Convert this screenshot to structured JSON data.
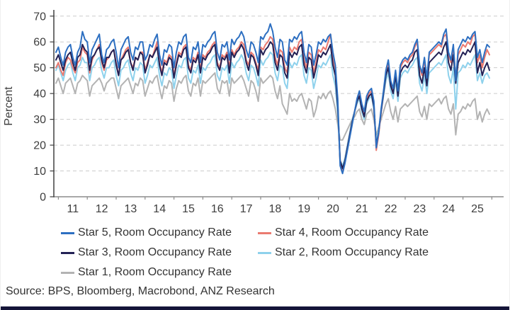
{
  "chart_data": {
    "type": "line",
    "title": "",
    "xlabel": "",
    "ylabel": "Percent",
    "ylim": [
      0,
      70
    ],
    "y_ticks": [
      0,
      10,
      20,
      30,
      40,
      50,
      60,
      70
    ],
    "x_tick_labels": [
      "11",
      "12",
      "13",
      "14",
      "15",
      "16",
      "17",
      "18",
      "19",
      "20",
      "21",
      "22",
      "23",
      "24",
      "25"
    ],
    "frequency": "monthly",
    "x_range": "Jun 2010 - Jun 2025",
    "grid": "horizontal dashed",
    "legend_position": "bottom",
    "series": [
      {
        "name": "Star 5, Room Occupancy Rate",
        "color": "#2d6fc1",
        "values": [
          56,
          58,
          54,
          51,
          56,
          58,
          59,
          54,
          51,
          56,
          58,
          64,
          61,
          60,
          52,
          57,
          59,
          61,
          63,
          55,
          52,
          57,
          58,
          60,
          61,
          56,
          50,
          57,
          59,
          61,
          62,
          56,
          53,
          58,
          57,
          60,
          60,
          53,
          55,
          59,
          58,
          61,
          63,
          55,
          51,
          57,
          56,
          59,
          58,
          50,
          56,
          60,
          59,
          62,
          63,
          54,
          52,
          58,
          57,
          60,
          52,
          59,
          58,
          60,
          61,
          63,
          64,
          56,
          53,
          59,
          58,
          60,
          53,
          61,
          59,
          61,
          62,
          64,
          62,
          57,
          54,
          60,
          59,
          56,
          52,
          62,
          61,
          63,
          64,
          67,
          64,
          58,
          54,
          61,
          60,
          53,
          51,
          61,
          60,
          62,
          61,
          63,
          64,
          56,
          52,
          59,
          58,
          51,
          55,
          60,
          59,
          61,
          60,
          62,
          63,
          56,
          51,
          38,
          12,
          9,
          13,
          18,
          23,
          28,
          33,
          38,
          41,
          36,
          33,
          39,
          41,
          42,
          37,
          19,
          25,
          34,
          41,
          49,
          53,
          45,
          42,
          49,
          41,
          51,
          53,
          54,
          53,
          55,
          56,
          59,
          61,
          51,
          48,
          54,
          46,
          56,
          57,
          58,
          59,
          60,
          59,
          63,
          65,
          56,
          53,
          59,
          45,
          57,
          59,
          61,
          60,
          62,
          61,
          63,
          64,
          54,
          57,
          52,
          56,
          59,
          58
        ]
      },
      {
        "name": "Star 4, Room Occupancy Rate",
        "color": "#ea7a70",
        "values": [
          50,
          52,
          49,
          47,
          52,
          54,
          53,
          50,
          48,
          52,
          53,
          58,
          56,
          55,
          48,
          53,
          55,
          57,
          59,
          52,
          49,
          53,
          54,
          56,
          57,
          52,
          47,
          53,
          55,
          57,
          58,
          52,
          50,
          54,
          53,
          56,
          56,
          49,
          52,
          55,
          54,
          57,
          60,
          52,
          48,
          53,
          52,
          55,
          54,
          47,
          52,
          56,
          55,
          58,
          59,
          51,
          49,
          54,
          53,
          56,
          49,
          55,
          54,
          56,
          57,
          59,
          60,
          52,
          50,
          55,
          54,
          56,
          50,
          57,
          55,
          57,
          58,
          60,
          59,
          53,
          51,
          56,
          55,
          52,
          49,
          58,
          57,
          59,
          60,
          62,
          61,
          54,
          51,
          57,
          56,
          50,
          48,
          58,
          56,
          58,
          57,
          60,
          61,
          53,
          50,
          56,
          55,
          48,
          52,
          57,
          56,
          58,
          57,
          60,
          63,
          54,
          49,
          36,
          13,
          10,
          14,
          19,
          24,
          29,
          33,
          37,
          40,
          35,
          32,
          38,
          40,
          41,
          36,
          18,
          24,
          33,
          40,
          48,
          51,
          44,
          41,
          48,
          40,
          50,
          52,
          53,
          52,
          54,
          55,
          58,
          60,
          50,
          47,
          53,
          45,
          55,
          56,
          57,
          58,
          59,
          58,
          62,
          63,
          55,
          52,
          58,
          46,
          55,
          57,
          59,
          58,
          60,
          59,
          62,
          63,
          52,
          55,
          50,
          54,
          57,
          55
        ]
      },
      {
        "name": "Star 3, Room Occupancy Rate",
        "color": "#232155",
        "values": [
          53,
          55,
          52,
          49,
          53,
          55,
          56,
          52,
          49,
          54,
          55,
          59,
          57,
          56,
          49,
          54,
          55,
          57,
          58,
          53,
          50,
          54,
          54,
          56,
          57,
          51,
          47,
          53,
          54,
          56,
          57,
          52,
          49,
          54,
          53,
          56,
          55,
          48,
          51,
          55,
          54,
          56,
          58,
          51,
          47,
          52,
          51,
          54,
          53,
          46,
          51,
          55,
          54,
          57,
          58,
          50,
          48,
          53,
          52,
          55,
          48,
          54,
          53,
          55,
          56,
          58,
          59,
          51,
          49,
          54,
          53,
          55,
          48,
          56,
          54,
          56,
          57,
          59,
          57,
          52,
          49,
          55,
          54,
          51,
          47,
          57,
          55,
          57,
          58,
          60,
          59,
          52,
          49,
          55,
          54,
          48,
          46,
          56,
          54,
          56,
          55,
          58,
          59,
          51,
          48,
          54,
          53,
          46,
          50,
          55,
          54,
          56,
          55,
          57,
          59,
          51,
          47,
          35,
          14,
          11,
          14,
          19,
          24,
          29,
          33,
          37,
          39,
          34,
          31,
          37,
          39,
          40,
          35,
          20,
          25,
          33,
          40,
          47,
          50,
          43,
          40,
          47,
          39,
          48,
          50,
          51,
          50,
          52,
          53,
          56,
          57,
          47,
          44,
          50,
          43,
          52,
          53,
          54,
          55,
          56,
          55,
          58,
          60,
          52,
          49,
          55,
          44,
          52,
          54,
          56,
          55,
          57,
          56,
          58,
          60,
          48,
          52,
          47,
          50,
          52,
          49
        ]
      },
      {
        "name": "Star 2, Room Occupancy Rate",
        "color": "#8ed1ec",
        "values": [
          49,
          51,
          48,
          45,
          49,
          51,
          52,
          48,
          45,
          50,
          51,
          54,
          52,
          52,
          45,
          50,
          51,
          53,
          54,
          49,
          46,
          50,
          50,
          52,
          53,
          47,
          43,
          49,
          50,
          52,
          53,
          48,
          45,
          50,
          49,
          52,
          51,
          44,
          47,
          51,
          50,
          52,
          54,
          47,
          43,
          48,
          47,
          50,
          49,
          42,
          47,
          51,
          50,
          53,
          54,
          46,
          44,
          49,
          48,
          51,
          44,
          50,
          49,
          51,
          52,
          54,
          55,
          47,
          45,
          50,
          49,
          51,
          44,
          52,
          50,
          52,
          53,
          55,
          53,
          48,
          45,
          51,
          50,
          47,
          43,
          53,
          51,
          53,
          54,
          56,
          55,
          48,
          45,
          51,
          50,
          44,
          42,
          52,
          50,
          52,
          51,
          54,
          55,
          47,
          44,
          50,
          49,
          42,
          46,
          51,
          50,
          52,
          51,
          53,
          55,
          47,
          43,
          32,
          14,
          12,
          15,
          20,
          25,
          30,
          33,
          36,
          38,
          33,
          30,
          36,
          38,
          39,
          34,
          21,
          26,
          33,
          39,
          45,
          48,
          41,
          38,
          45,
          37,
          46,
          48,
          49,
          48,
          50,
          51,
          53,
          54,
          44,
          41,
          47,
          40,
          48,
          49,
          50,
          51,
          52,
          51,
          53,
          55,
          47,
          44,
          50,
          34,
          48,
          49,
          51,
          50,
          52,
          51,
          53,
          55,
          45,
          48,
          44,
          47,
          48,
          46
        ]
      },
      {
        "name": "Star 1, Room Occupancy Rate",
        "color": "#b3b3b3",
        "values": [
          44,
          46,
          43,
          40,
          44,
          45,
          46,
          43,
          40,
          44,
          45,
          47,
          46,
          45,
          39,
          43,
          44,
          45,
          46,
          44,
          41,
          44,
          45,
          46,
          46,
          42,
          38,
          43,
          44,
          45,
          46,
          43,
          40,
          44,
          43,
          46,
          45,
          39,
          42,
          45,
          44,
          46,
          47,
          42,
          38,
          43,
          42,
          45,
          44,
          37,
          42,
          45,
          44,
          46,
          47,
          41,
          39,
          44,
          43,
          46,
          39,
          45,
          44,
          45,
          46,
          47,
          48,
          42,
          40,
          45,
          44,
          45,
          39,
          46,
          44,
          45,
          46,
          47,
          45,
          42,
          39,
          45,
          44,
          41,
          37,
          46,
          44,
          45,
          46,
          47,
          46,
          41,
          38,
          43,
          36,
          34,
          32,
          40,
          37,
          38,
          37,
          39,
          40,
          37,
          34,
          38,
          37,
          31,
          34,
          39,
          38,
          40,
          38,
          40,
          41,
          38,
          34,
          28,
          22,
          22,
          24,
          26,
          28,
          30,
          31,
          33,
          34,
          30,
          28,
          32,
          33,
          34,
          30,
          24,
          27,
          30,
          33,
          36,
          38,
          33,
          30,
          35,
          29,
          34,
          35,
          36,
          35,
          36,
          37,
          38,
          39,
          33,
          31,
          35,
          30,
          36,
          35,
          36,
          37,
          38,
          36,
          38,
          39,
          34,
          32,
          36,
          24,
          32,
          33,
          35,
          34,
          36,
          35,
          37,
          38,
          30,
          33,
          29,
          32,
          34,
          32
        ]
      }
    ]
  },
  "axis": {
    "text_color": "#3d3d3d",
    "y_axis_color": "#404040",
    "x_axis_color": "#8c8c8c",
    "grid_color": "#cbcbcb"
  },
  "source": {
    "text": "Source: BPS, Bloomberg, Macrobond, ANZ Research"
  },
  "footer": {
    "bar_color": "#141438"
  }
}
